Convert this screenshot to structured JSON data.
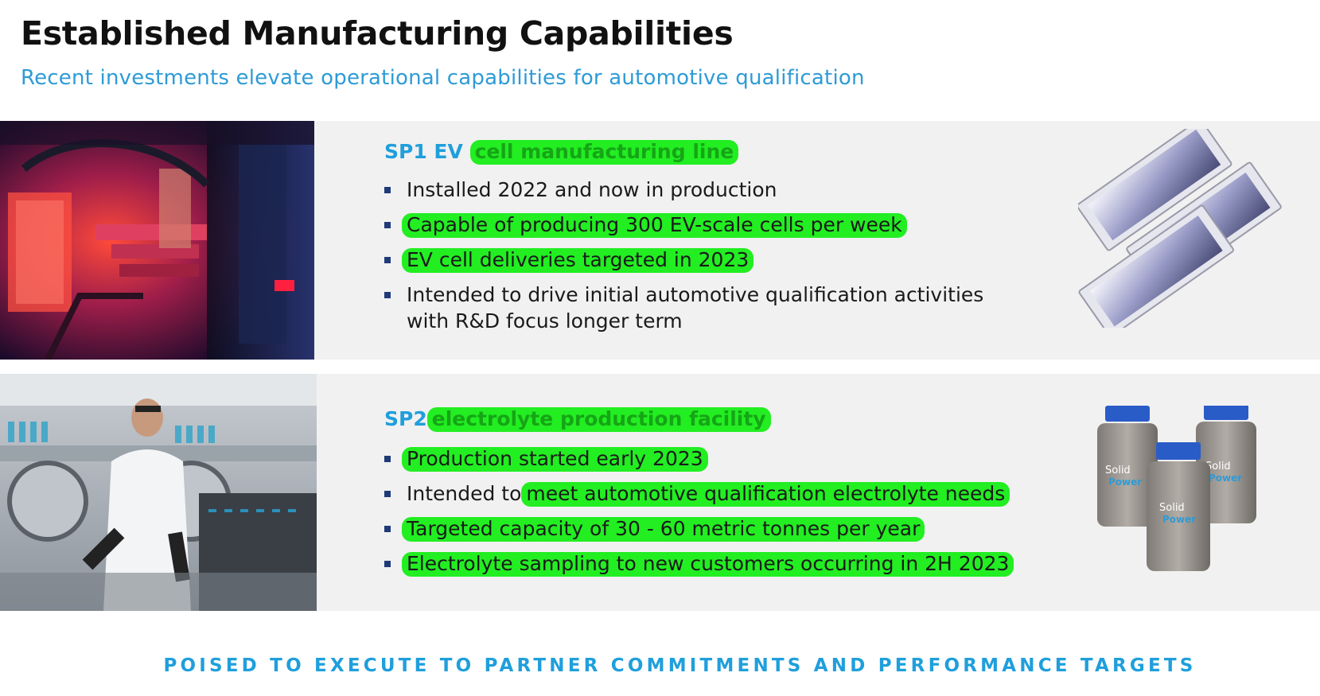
{
  "header": {
    "title": "Established Manufacturing Capabilities",
    "subtitle": "Recent investments elevate operational capabilities for automotive qualification"
  },
  "sp1": {
    "heading_prefix": "SP1 EV",
    "heading_highlight": "cell manufacturing line",
    "bullets": [
      "Installed 2022 and now in production",
      "Capable of producing 300 EV-scale cells per week",
      "EV cell deliveries targeted in 2023",
      "Intended to drive initial automotive qualification activities with R&D focus longer term"
    ]
  },
  "sp2": {
    "heading_prefix": "SP2",
    "heading_highlight": "electrolyte production facility",
    "bullets": [
      "Production started early 2023",
      "Intended to",
      "meet automotive qualification electrolyte needs",
      "Targeted capacity of 30 - 60 metric tonnes per year",
      "Electrolyte sampling to new customers occurring in 2H 2023"
    ],
    "jar_label_line1": "Solid",
    "jar_label_line2": "Power"
  },
  "footer": {
    "tagline": "POISED TO EXECUTE TO PARTNER COMMITMENTS AND PERFORMANCE TARGETS"
  },
  "colors": {
    "accent_blue": "#1f9fdc",
    "highlight_green": "#22ee22",
    "panel_bg": "#f1f1f1",
    "bullet_navy": "#1e3a78"
  }
}
